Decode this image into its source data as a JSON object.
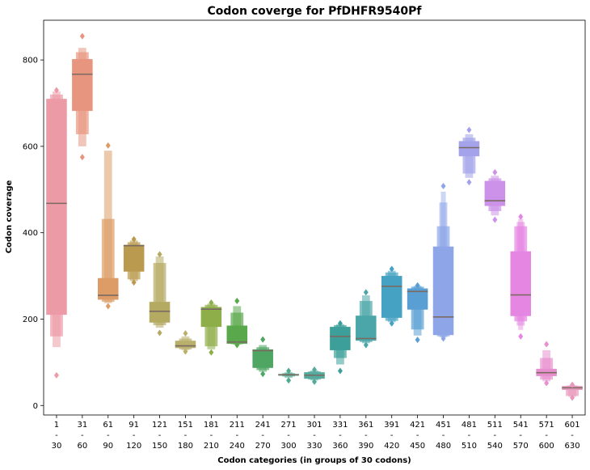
{
  "chart_data": {
    "type": "boxen",
    "title": "Codon coverge for PfDHFR9540Pf",
    "xlabel": "Codon categories (in groups of 30 codons)",
    "ylabel": "Codon coverage",
    "ylim": [
      -22,
      892
    ],
    "yticks": [
      0,
      200,
      400,
      600,
      800
    ],
    "grid": false,
    "categories": [
      {
        "label": [
          "1",
          "-",
          "30"
        ],
        "color": "#ec9aa6",
        "median": 468,
        "q1": 210,
        "q3": 710,
        "min": 70,
        "max": 732,
        "levels": [
          [
            210,
            710
          ],
          [
            160,
            720
          ],
          [
            135,
            727
          ]
        ],
        "outliers": [
          70,
          730
        ]
      },
      {
        "label": [
          "31",
          "-",
          "60"
        ],
        "color": "#e8957f",
        "median": 767,
        "q1": 682,
        "q3": 802,
        "min": 575,
        "max": 856,
        "levels": [
          [
            682,
            802
          ],
          [
            628,
            818
          ],
          [
            600,
            828
          ]
        ],
        "outliers": [
          575,
          855
        ]
      },
      {
        "label": [
          "61",
          "-",
          "90"
        ],
        "color": "#dd9c66",
        "median": 255,
        "q1": 245,
        "q3": 295,
        "min": 230,
        "max": 602,
        "levels": [
          [
            245,
            295
          ],
          [
            240,
            432
          ],
          [
            237,
            590
          ]
        ],
        "outliers": [
          230,
          602
        ]
      },
      {
        "label": [
          "91",
          "-",
          "120"
        ],
        "color": "#b99a4e",
        "median": 370,
        "q1": 310,
        "q3": 372,
        "min": 285,
        "max": 385,
        "levels": [
          [
            310,
            372
          ],
          [
            292,
            378
          ],
          [
            288,
            382
          ]
        ],
        "outliers": [
          285,
          385
        ]
      },
      {
        "label": [
          "121",
          "-",
          "150"
        ],
        "color": "#b5aa62",
        "median": 218,
        "q1": 192,
        "q3": 240,
        "min": 168,
        "max": 350,
        "levels": [
          [
            192,
            240
          ],
          [
            186,
            330
          ],
          [
            180,
            345
          ]
        ],
        "outliers": [
          168,
          350
        ]
      },
      {
        "label": [
          "151",
          "-",
          "180"
        ],
        "color": "#b9b06c",
        "median": 138,
        "q1": 133,
        "q3": 150,
        "min": 125,
        "max": 168,
        "levels": [
          [
            133,
            150
          ],
          [
            130,
            155
          ],
          [
            128,
            160
          ]
        ],
        "outliers": [
          125,
          167
        ]
      },
      {
        "label": [
          "181",
          "-",
          "210"
        ],
        "color": "#8eae4a",
        "median": 223,
        "q1": 182,
        "q3": 228,
        "min": 123,
        "max": 238,
        "levels": [
          [
            182,
            228
          ],
          [
            137,
            233
          ],
          [
            130,
            236
          ]
        ],
        "outliers": [
          123,
          238
        ]
      },
      {
        "label": [
          "211",
          "-",
          "240"
        ],
        "color": "#5aa84c",
        "median": 147,
        "q1": 143,
        "q3": 185,
        "min": 140,
        "max": 242,
        "levels": [
          [
            143,
            185
          ],
          [
            142,
            215
          ],
          [
            141,
            230
          ]
        ],
        "outliers": [
          140,
          242
        ]
      },
      {
        "label": [
          "241",
          "-",
          "270"
        ],
        "color": "#4fa663",
        "median": 127,
        "q1": 87,
        "q3": 130,
        "min": 73,
        "max": 153,
        "levels": [
          [
            87,
            130
          ],
          [
            82,
            135
          ],
          [
            78,
            140
          ]
        ],
        "outliers": [
          73,
          153
        ]
      },
      {
        "label": [
          "271",
          "-",
          "300"
        ],
        "color": "#52a991",
        "median": 71,
        "q1": 69,
        "q3": 73,
        "min": 58,
        "max": 80,
        "levels": [
          [
            69,
            73
          ],
          [
            67,
            75
          ],
          [
            64,
            77
          ]
        ],
        "outliers": [
          58,
          80
        ]
      },
      {
        "label": [
          "301",
          "-",
          "330"
        ],
        "color": "#55aa9e",
        "median": 70,
        "q1": 62,
        "q3": 77,
        "min": 55,
        "max": 83,
        "levels": [
          [
            62,
            77
          ],
          [
            60,
            79
          ],
          [
            58,
            81
          ]
        ],
        "outliers": [
          55,
          83
        ]
      },
      {
        "label": [
          "331",
          "-",
          "360"
        ],
        "color": "#3c9f99",
        "median": 160,
        "q1": 128,
        "q3": 182,
        "min": 80,
        "max": 190,
        "levels": [
          [
            128,
            182
          ],
          [
            110,
            186
          ],
          [
            95,
            188
          ]
        ],
        "outliers": [
          80,
          190
        ]
      },
      {
        "label": [
          "361",
          "-",
          "390"
        ],
        "color": "#4aa6a8",
        "median": 155,
        "q1": 150,
        "q3": 208,
        "min": 140,
        "max": 262,
        "levels": [
          [
            150,
            208
          ],
          [
            147,
            242
          ],
          [
            144,
            255
          ]
        ],
        "outliers": [
          140,
          262
        ]
      },
      {
        "label": [
          "391",
          "-",
          "420"
        ],
        "color": "#45a2c2",
        "median": 276,
        "q1": 203,
        "q3": 300,
        "min": 190,
        "max": 316,
        "levels": [
          [
            203,
            300
          ],
          [
            196,
            308
          ],
          [
            193,
            312
          ]
        ],
        "outliers": [
          190,
          316
        ]
      },
      {
        "label": [
          "421",
          "-",
          "450"
        ],
        "color": "#5a9fd4",
        "median": 264,
        "q1": 222,
        "q3": 271,
        "min": 152,
        "max": 278,
        "levels": [
          [
            222,
            271
          ],
          [
            176,
            275
          ],
          [
            162,
            277
          ]
        ],
        "outliers": [
          152,
          278
        ]
      },
      {
        "label": [
          "451",
          "-",
          "480"
        ],
        "color": "#8ea6e8",
        "median": 205,
        "q1": 163,
        "q3": 368,
        "min": 155,
        "max": 508,
        "levels": [
          [
            163,
            368
          ],
          [
            160,
            415
          ],
          [
            158,
            470
          ],
          [
            157,
            495
          ]
        ],
        "outliers": [
          155,
          508
        ]
      },
      {
        "label": [
          "481",
          "-",
          "510"
        ],
        "color": "#a3a2ea",
        "median": 597,
        "q1": 577,
        "q3": 612,
        "min": 517,
        "max": 638,
        "levels": [
          [
            577,
            612
          ],
          [
            537,
            620
          ],
          [
            527,
            628
          ]
        ],
        "outliers": [
          517,
          638
        ]
      },
      {
        "label": [
          "511",
          "-",
          "540"
        ],
        "color": "#cc91e8",
        "median": 474,
        "q1": 462,
        "q3": 520,
        "min": 430,
        "max": 540,
        "levels": [
          [
            462,
            520
          ],
          [
            450,
            526
          ],
          [
            440,
            532
          ]
        ],
        "outliers": [
          430,
          540
        ]
      },
      {
        "label": [
          "541",
          "-",
          "570"
        ],
        "color": "#e586e2",
        "median": 256,
        "q1": 207,
        "q3": 357,
        "min": 160,
        "max": 437,
        "levels": [
          [
            207,
            357
          ],
          [
            195,
            415
          ],
          [
            185,
            425
          ],
          [
            175,
            432
          ]
        ],
        "outliers": [
          160,
          437
        ]
      },
      {
        "label": [
          "571",
          "-",
          "600"
        ],
        "color": "#e890cf",
        "median": 76,
        "q1": 68,
        "q3": 85,
        "min": 52,
        "max": 142,
        "levels": [
          [
            68,
            85
          ],
          [
            60,
            110
          ],
          [
            56,
            128
          ]
        ],
        "outliers": [
          52,
          142
        ]
      },
      {
        "label": [
          "601",
          "-",
          "630"
        ],
        "color": "#e898bc",
        "median": 41,
        "q1": 36,
        "q3": 45,
        "min": 18,
        "max": 48,
        "levels": [
          [
            36,
            45
          ],
          [
            22,
            46
          ],
          [
            20,
            47
          ]
        ],
        "outliers": [
          18,
          48
        ]
      }
    ]
  }
}
